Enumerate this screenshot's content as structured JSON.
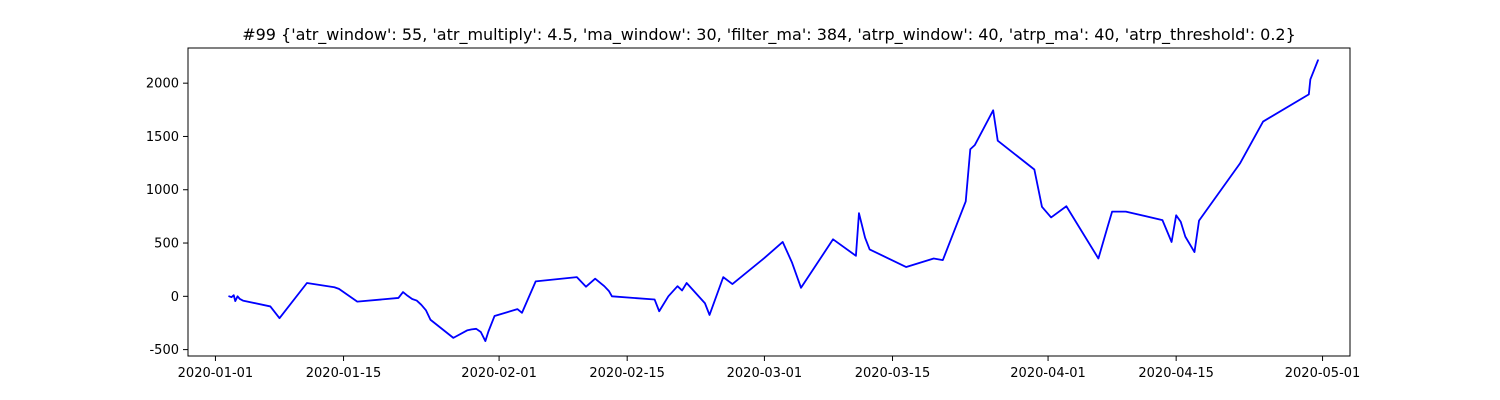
{
  "chart_data": {
    "type": "line",
    "title": "#99 {'atr_window': 55, 'atr_multiply': 4.5, 'ma_window': 30, 'filter_ma': 384, 'atrp_window': 40, 'atrp_ma': 40, 'atrp_threshold': 0.2}",
    "xlabel": "",
    "ylabel": "",
    "xlim": [
      "2019-12-29",
      "2020-05-04"
    ],
    "ylim": [
      -560,
      2330
    ],
    "grid": false,
    "x_ticks": [
      "2020-01-01",
      "2020-01-15",
      "2020-02-01",
      "2020-02-15",
      "2020-03-01",
      "2020-03-15",
      "2020-04-01",
      "2020-04-15",
      "2020-05-01"
    ],
    "y_ticks": [
      -500,
      0,
      500,
      1000,
      1500,
      2000
    ],
    "series": [
      {
        "color": "#0000ff",
        "points": [
          [
            "2020-01-02 12:00",
            0
          ],
          [
            "2020-01-02 18:00",
            -8
          ],
          [
            "2020-01-03 00:00",
            10
          ],
          [
            "2020-01-03 04:00",
            -45
          ],
          [
            "2020-01-03 10:00",
            0
          ],
          [
            "2020-01-03 16:00",
            -25
          ],
          [
            "2020-01-04 00:00",
            -40
          ],
          [
            "2020-01-07 00:00",
            -95
          ],
          [
            "2020-01-08 00:00",
            -205
          ],
          [
            "2020-01-11 00:00",
            125
          ],
          [
            "2020-01-14 00:00",
            85
          ],
          [
            "2020-01-14 12:00",
            70
          ],
          [
            "2020-01-15 12:00",
            10
          ],
          [
            "2020-01-16 12:00",
            -50
          ],
          [
            "2020-01-21 00:00",
            -15
          ],
          [
            "2020-01-21 12:00",
            40
          ],
          [
            "2020-01-22 00:00",
            5
          ],
          [
            "2020-01-22 12:00",
            -25
          ],
          [
            "2020-01-23 00:00",
            -40
          ],
          [
            "2020-01-23 12:00",
            -80
          ],
          [
            "2020-01-24 00:00",
            -130
          ],
          [
            "2020-01-24 12:00",
            -220
          ],
          [
            "2020-01-27 00:00",
            -390
          ],
          [
            "2020-01-28 12:00",
            -320
          ],
          [
            "2020-01-29 00:00",
            -310
          ],
          [
            "2020-01-29 12:00",
            -305
          ],
          [
            "2020-01-30 00:00",
            -335
          ],
          [
            "2020-01-30 12:00",
            -420
          ],
          [
            "2020-01-30 20:00",
            -330
          ],
          [
            "2020-01-31 12:00",
            -185
          ],
          [
            "2020-02-03 00:00",
            -120
          ],
          [
            "2020-02-03 12:00",
            -155
          ],
          [
            "2020-02-05 00:00",
            140
          ],
          [
            "2020-02-09 12:00",
            180
          ],
          [
            "2020-02-10 12:00",
            90
          ],
          [
            "2020-02-11 12:00",
            165
          ],
          [
            "2020-02-12 12:00",
            95
          ],
          [
            "2020-02-13 00:00",
            50
          ],
          [
            "2020-02-13 08:00",
            0
          ],
          [
            "2020-02-18 00:00",
            -30
          ],
          [
            "2020-02-18 12:00",
            -140
          ],
          [
            "2020-02-19 12:00",
            0
          ],
          [
            "2020-02-20 12:00",
            95
          ],
          [
            "2020-02-21 00:00",
            55
          ],
          [
            "2020-02-21 12:00",
            125
          ],
          [
            "2020-02-23 12:00",
            -65
          ],
          [
            "2020-02-24 00:00",
            -175
          ],
          [
            "2020-02-25 12:00",
            180
          ],
          [
            "2020-02-26 12:00",
            115
          ],
          [
            "2020-03-01 00:00",
            360
          ],
          [
            "2020-03-03 00:00",
            510
          ],
          [
            "2020-03-04 00:00",
            320
          ],
          [
            "2020-03-05 00:00",
            80
          ],
          [
            "2020-03-08 12:00",
            535
          ],
          [
            "2020-03-11 00:00",
            380
          ],
          [
            "2020-03-11 08:00",
            780
          ],
          [
            "2020-03-12 00:00",
            550
          ],
          [
            "2020-03-12 12:00",
            440
          ],
          [
            "2020-03-16 12:00",
            275
          ],
          [
            "2020-03-19 12:00",
            355
          ],
          [
            "2020-03-20 12:00",
            340
          ],
          [
            "2020-03-23 00:00",
            890
          ],
          [
            "2020-03-23 12:00",
            1380
          ],
          [
            "2020-03-24 00:00",
            1420
          ],
          [
            "2020-03-26 00:00",
            1745
          ],
          [
            "2020-03-26 12:00",
            1460
          ],
          [
            "2020-03-30 12:00",
            1190
          ],
          [
            "2020-03-31 08:00",
            840
          ],
          [
            "2020-04-01 08:00",
            740
          ],
          [
            "2020-04-03 00:00",
            845
          ],
          [
            "2020-04-06 12:00",
            355
          ],
          [
            "2020-04-07 12:00",
            650
          ],
          [
            "2020-04-08 00:00",
            795
          ],
          [
            "2020-04-09 12:00",
            795
          ],
          [
            "2020-04-13 12:00",
            715
          ],
          [
            "2020-04-14 12:00",
            510
          ],
          [
            "2020-04-15 00:00",
            760
          ],
          [
            "2020-04-15 12:00",
            700
          ],
          [
            "2020-04-16 00:00",
            560
          ],
          [
            "2020-04-17 00:00",
            415
          ],
          [
            "2020-04-17 12:00",
            710
          ],
          [
            "2020-04-22 00:00",
            1250
          ],
          [
            "2020-04-24 12:00",
            1640
          ],
          [
            "2020-04-29 12:00",
            1895
          ],
          [
            "2020-04-29 16:00",
            2035
          ],
          [
            "2020-04-30 12:00",
            2215
          ]
        ]
      }
    ]
  }
}
